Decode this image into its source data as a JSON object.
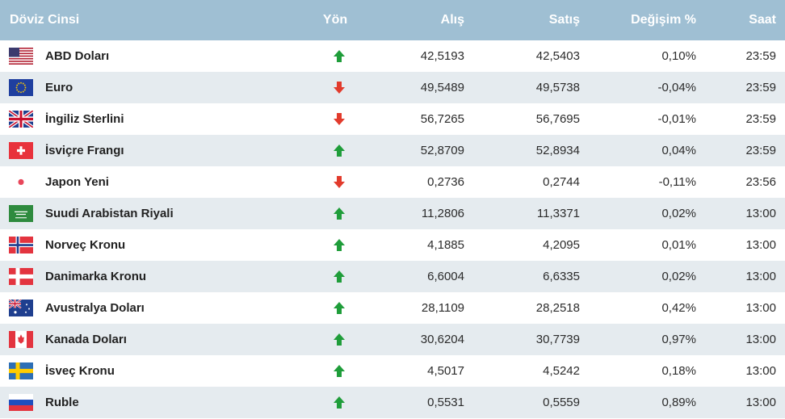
{
  "header": {
    "columns": [
      "Döviz Cinsi",
      "Yön",
      "Alış",
      "Satış",
      "Değişim %",
      "Saat"
    ]
  },
  "rows": [
    {
      "name": "ABD Doları",
      "trend": "up",
      "buy": "42,5193",
      "sell": "42,5403",
      "change": "0,10%",
      "time": "23:59"
    },
    {
      "name": "Euro",
      "trend": "down",
      "buy": "49,5489",
      "sell": "49,5738",
      "change": "-0,04%",
      "time": "23:59"
    },
    {
      "name": "İngiliz Sterlini",
      "trend": "down",
      "buy": "56,7265",
      "sell": "56,7695",
      "change": "-0,01%",
      "time": "23:59"
    },
    {
      "name": "İsviçre Frangı",
      "trend": "up",
      "buy": "52,8709",
      "sell": "52,8934",
      "change": "0,04%",
      "time": "23:59"
    },
    {
      "name": "Japon Yeni",
      "trend": "down",
      "buy": "0,2736",
      "sell": "0,2744",
      "change": "-0,11%",
      "time": "23:56"
    },
    {
      "name": "Suudi Arabistan Riyali",
      "trend": "up",
      "buy": "11,2806",
      "sell": "11,3371",
      "change": "0,02%",
      "time": "13:00"
    },
    {
      "name": "Norveç Kronu",
      "trend": "up",
      "buy": "4,1885",
      "sell": "4,2095",
      "change": "0,01%",
      "time": "13:00"
    },
    {
      "name": "Danimarka Kronu",
      "trend": "up",
      "buy": "6,6004",
      "sell": "6,6335",
      "change": "0,02%",
      "time": "13:00"
    },
    {
      "name": "Avustralya Doları",
      "trend": "up",
      "buy": "28,1109",
      "sell": "28,2518",
      "change": "0,42%",
      "time": "13:00"
    },
    {
      "name": "Kanada Doları",
      "trend": "up",
      "buy": "30,6204",
      "sell": "30,7739",
      "change": "0,97%",
      "time": "13:00"
    },
    {
      "name": "İsveç Kronu",
      "trend": "up",
      "buy": "4,5017",
      "sell": "4,5242",
      "change": "0,18%",
      "time": "13:00"
    },
    {
      "name": "Ruble",
      "trend": "up",
      "buy": "0,5531",
      "sell": "0,5559",
      "change": "0,89%",
      "time": "13:00"
    }
  ]
}
